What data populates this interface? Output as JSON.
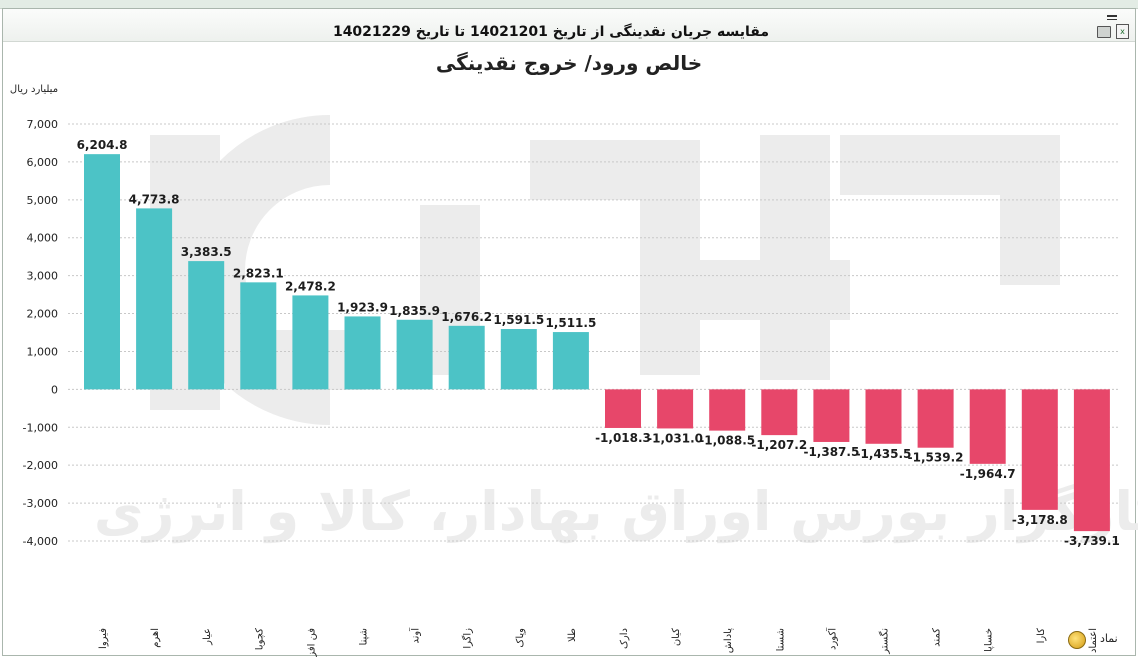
{
  "window": {
    "title": "مقایسه جریان نقدینگی از تاریخ 14021201 تا تاریخ 14021229"
  },
  "footer": {
    "symbol_label": "نماد"
  },
  "watermark": {
    "text": "کارگزار بورس اوراق بهادار، کالا و انرژی",
    "logo": "آگاه"
  },
  "colors": {
    "positive": "#4cc3c6",
    "negative": "#e7476a",
    "watermark": "#ececec",
    "grid": "#c8c8c8"
  },
  "chart_data": {
    "type": "bar",
    "title": "خالص ورود/ خروج نقدینگی",
    "ylabel": "میلیارد ریال",
    "xlabel": "",
    "ylim": [
      -4000,
      7000
    ],
    "yticks": [
      7000,
      6000,
      5000,
      4000,
      3000,
      2000,
      1000,
      0,
      -1000,
      -2000,
      -3000,
      -4000
    ],
    "ytick_labels": [
      "7,000",
      "6,000",
      "5,000",
      "4,000",
      "3,000",
      "2,000",
      "1,000",
      "0",
      "-1,000",
      "-2,000",
      "-3,000",
      "-4,000"
    ],
    "grid": true,
    "categories": [
      "فیروا",
      "اهرم",
      "عیار",
      "کچوبا",
      "فن افزار",
      "شپنا",
      "آوند",
      "زاگرا",
      "وپاک",
      "طلا",
      "دارک",
      "کیان",
      "پاداش",
      "شستا",
      "آکورد",
      "نگستر",
      "کمند",
      "خساپا",
      "کارا",
      "اعتماد"
    ],
    "values": [
      6204.8,
      4773.8,
      3383.5,
      2823.1,
      2478.2,
      1923.9,
      1835.9,
      1676.2,
      1591.5,
      1511.5,
      -1018.3,
      -1031.0,
      -1088.5,
      -1207.2,
      -1387.5,
      -1435.5,
      -1539.2,
      -1964.7,
      -3178.8,
      -3739.1
    ],
    "value_labels": [
      "6,204.8",
      "4,773.8",
      "3,383.5",
      "2,823.1",
      "2,478.2",
      "1,923.9",
      "1,835.9",
      "1,676.2",
      "1,591.5",
      "1,511.5",
      "-1,018.3",
      "-1,031.0",
      "-1,088.5",
      "-1,207.2",
      "-1,387.5",
      "-1,435.5",
      "-1,539.2",
      "-1,964.7",
      "-3,178.8",
      "-3,739.1"
    ]
  }
}
